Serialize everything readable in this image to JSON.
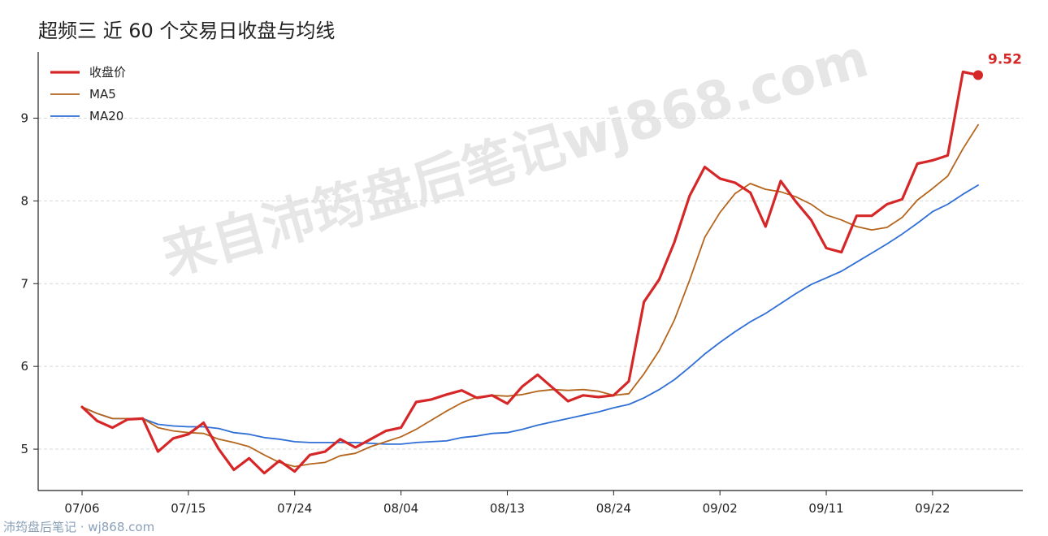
{
  "title": "超频三 近 60 个交易日收盘与均线",
  "footer": "沛筠盘后笔记 · wj868.com",
  "watermark": "来自沛筠盘后笔记wj868.com",
  "colors": {
    "close": "#d62728",
    "ma5": "#b5651d",
    "ma20": "#2f6fd6"
  },
  "chart_data": {
    "type": "line",
    "title": "超频三 近 60 个交易日收盘与均线",
    "xlabel": "",
    "ylabel": "",
    "ylim": [
      4.5,
      9.8
    ],
    "yticks": [
      5,
      6,
      7,
      8,
      9
    ],
    "grid": "horizontal dashed",
    "legend": "top-left",
    "x_tick_labels": [
      {
        "index": 0,
        "label": "07/06"
      },
      {
        "index": 7,
        "label": "07/15"
      },
      {
        "index": 14,
        "label": "07/24"
      },
      {
        "index": 21,
        "label": "08/04"
      },
      {
        "index": 28,
        "label": "08/13"
      },
      {
        "index": 35,
        "label": "08/24"
      },
      {
        "index": 42,
        "label": "09/02"
      },
      {
        "index": 49,
        "label": "09/11"
      },
      {
        "index": 56,
        "label": "09/22"
      }
    ],
    "series": [
      {
        "name": "收盘价",
        "key": "close",
        "values": [
          5.51,
          5.34,
          5.26,
          5.36,
          5.37,
          4.97,
          5.13,
          5.18,
          5.32,
          5.0,
          4.75,
          4.89,
          4.71,
          4.86,
          4.73,
          4.93,
          4.97,
          5.12,
          5.02,
          5.12,
          5.22,
          5.26,
          5.57,
          5.6,
          5.66,
          5.71,
          5.62,
          5.65,
          5.55,
          5.76,
          5.9,
          5.74,
          5.58,
          5.65,
          5.63,
          5.65,
          5.82,
          6.78,
          7.05,
          7.5,
          8.06,
          8.41,
          8.27,
          8.22,
          8.1,
          7.69,
          8.24,
          7.99,
          7.77,
          7.43,
          7.38,
          7.82,
          7.82,
          7.96,
          8.02,
          8.45,
          8.49,
          8.55,
          9.56,
          9.52
        ]
      },
      {
        "name": "MA5",
        "key": "ma5",
        "values": [
          5.51,
          5.43,
          5.37,
          5.37,
          5.37,
          5.26,
          5.22,
          5.2,
          5.19,
          5.12,
          5.08,
          5.03,
          4.93,
          4.84,
          4.79,
          4.82,
          4.84,
          4.92,
          4.95,
          5.03,
          5.09,
          5.15,
          5.24,
          5.35,
          5.46,
          5.56,
          5.63,
          5.65,
          5.64,
          5.66,
          5.7,
          5.72,
          5.71,
          5.72,
          5.7,
          5.65,
          5.67,
          5.91,
          6.19,
          6.56,
          7.04,
          7.56,
          7.86,
          8.09,
          8.21,
          8.14,
          8.11,
          8.05,
          7.96,
          7.83,
          7.77,
          7.69,
          7.65,
          7.68,
          7.8,
          8.01,
          8.15,
          8.3,
          8.63,
          8.92
        ]
      },
      {
        "name": "MA20",
        "key": "ma20",
        "values": [
          5.51,
          5.43,
          5.37,
          5.37,
          5.37,
          5.3,
          5.28,
          5.27,
          5.27,
          5.25,
          5.2,
          5.18,
          5.14,
          5.12,
          5.09,
          5.08,
          5.08,
          5.08,
          5.08,
          5.07,
          5.06,
          5.06,
          5.08,
          5.09,
          5.1,
          5.14,
          5.16,
          5.19,
          5.2,
          5.24,
          5.29,
          5.33,
          5.37,
          5.41,
          5.45,
          5.5,
          5.54,
          5.62,
          5.72,
          5.84,
          5.99,
          6.15,
          6.29,
          6.42,
          6.54,
          6.64,
          6.76,
          6.88,
          6.99,
          7.07,
          7.15,
          7.26,
          7.37,
          7.48,
          7.6,
          7.73,
          7.87,
          7.96,
          8.08,
          8.19
        ]
      }
    ],
    "last_value_label": "9.52"
  }
}
